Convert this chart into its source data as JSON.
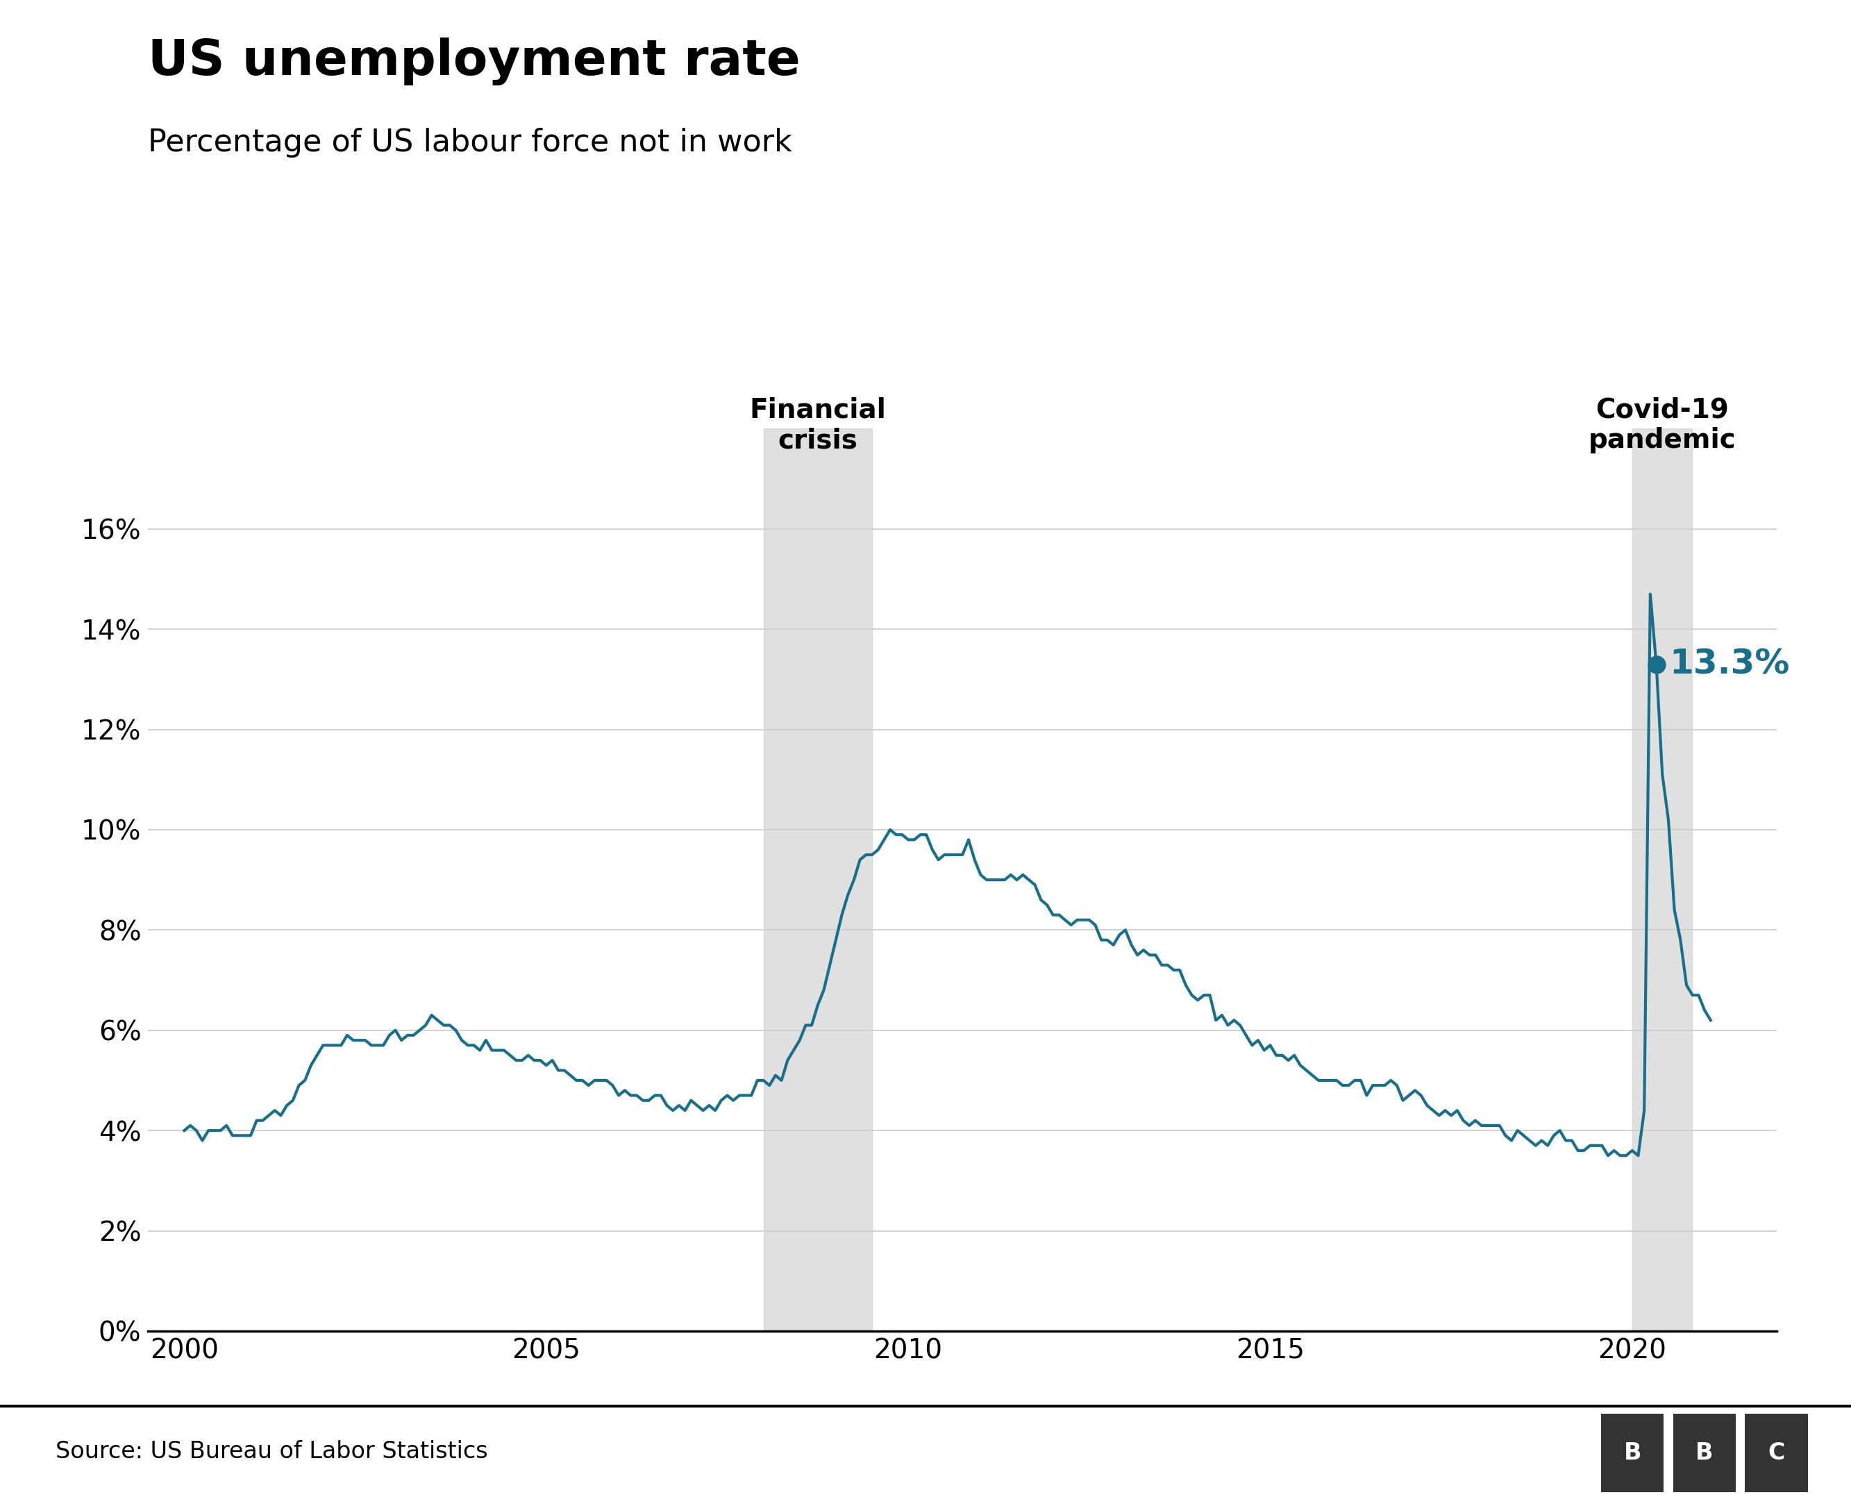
{
  "title": "US unemployment rate",
  "subtitle": "Percentage of US labour force not in work",
  "source": "Source: US Bureau of Labor Statistics",
  "line_color": "#1a6e8a",
  "background_color": "#ffffff",
  "financial_crisis_start": 2008.0,
  "financial_crisis_end": 2009.5,
  "covid_start": 2020.0,
  "covid_end": 2020.83,
  "annotation_label": "13.3%",
  "annotation_value": 13.3,
  "dot_x": 2020.333,
  "dot_y": 13.3,
  "financial_crisis_label": "Financial\ncrisis",
  "covid_label": "Covid-19\npandemic",
  "xlim": [
    1999.5,
    2022.0
  ],
  "ylim": [
    0,
    18
  ],
  "yticks": [
    0,
    2,
    4,
    6,
    8,
    10,
    12,
    14,
    16
  ],
  "ytick_labels": [
    "0%",
    "2%",
    "4%",
    "6%",
    "8%",
    "10%",
    "12%",
    "14%",
    "16%"
  ],
  "xticks": [
    2000,
    2005,
    2010,
    2015,
    2020
  ],
  "title_fontsize": 52,
  "subtitle_fontsize": 32,
  "annotation_fontsize": 36,
  "tick_fontsize": 28,
  "crisis_label_fontsize": 28,
  "source_fontsize": 24,
  "shade_color": "#cccccc",
  "shade_alpha": 0.6,
  "unemployment_data": [
    [
      2000,
      1,
      4.0
    ],
    [
      2000,
      2,
      4.1
    ],
    [
      2000,
      3,
      4.0
    ],
    [
      2000,
      4,
      3.8
    ],
    [
      2000,
      5,
      4.0
    ],
    [
      2000,
      6,
      4.0
    ],
    [
      2000,
      7,
      4.0
    ],
    [
      2000,
      8,
      4.1
    ],
    [
      2000,
      9,
      3.9
    ],
    [
      2000,
      10,
      3.9
    ],
    [
      2000,
      11,
      3.9
    ],
    [
      2000,
      12,
      3.9
    ],
    [
      2001,
      1,
      4.2
    ],
    [
      2001,
      2,
      4.2
    ],
    [
      2001,
      3,
      4.3
    ],
    [
      2001,
      4,
      4.4
    ],
    [
      2001,
      5,
      4.3
    ],
    [
      2001,
      6,
      4.5
    ],
    [
      2001,
      7,
      4.6
    ],
    [
      2001,
      8,
      4.9
    ],
    [
      2001,
      9,
      5.0
    ],
    [
      2001,
      10,
      5.3
    ],
    [
      2001,
      11,
      5.5
    ],
    [
      2001,
      12,
      5.7
    ],
    [
      2002,
      1,
      5.7
    ],
    [
      2002,
      2,
      5.7
    ],
    [
      2002,
      3,
      5.7
    ],
    [
      2002,
      4,
      5.9
    ],
    [
      2002,
      5,
      5.8
    ],
    [
      2002,
      6,
      5.8
    ],
    [
      2002,
      7,
      5.8
    ],
    [
      2002,
      8,
      5.7
    ],
    [
      2002,
      9,
      5.7
    ],
    [
      2002,
      10,
      5.7
    ],
    [
      2002,
      11,
      5.9
    ],
    [
      2002,
      12,
      6.0
    ],
    [
      2003,
      1,
      5.8
    ],
    [
      2003,
      2,
      5.9
    ],
    [
      2003,
      3,
      5.9
    ],
    [
      2003,
      4,
      6.0
    ],
    [
      2003,
      5,
      6.1
    ],
    [
      2003,
      6,
      6.3
    ],
    [
      2003,
      7,
      6.2
    ],
    [
      2003,
      8,
      6.1
    ],
    [
      2003,
      9,
      6.1
    ],
    [
      2003,
      10,
      6.0
    ],
    [
      2003,
      11,
      5.8
    ],
    [
      2003,
      12,
      5.7
    ],
    [
      2004,
      1,
      5.7
    ],
    [
      2004,
      2,
      5.6
    ],
    [
      2004,
      3,
      5.8
    ],
    [
      2004,
      4,
      5.6
    ],
    [
      2004,
      5,
      5.6
    ],
    [
      2004,
      6,
      5.6
    ],
    [
      2004,
      7,
      5.5
    ],
    [
      2004,
      8,
      5.4
    ],
    [
      2004,
      9,
      5.4
    ],
    [
      2004,
      10,
      5.5
    ],
    [
      2004,
      11,
      5.4
    ],
    [
      2004,
      12,
      5.4
    ],
    [
      2005,
      1,
      5.3
    ],
    [
      2005,
      2,
      5.4
    ],
    [
      2005,
      3,
      5.2
    ],
    [
      2005,
      4,
      5.2
    ],
    [
      2005,
      5,
      5.1
    ],
    [
      2005,
      6,
      5.0
    ],
    [
      2005,
      7,
      5.0
    ],
    [
      2005,
      8,
      4.9
    ],
    [
      2005,
      9,
      5.0
    ],
    [
      2005,
      10,
      5.0
    ],
    [
      2005,
      11,
      5.0
    ],
    [
      2005,
      12,
      4.9
    ],
    [
      2006,
      1,
      4.7
    ],
    [
      2006,
      2,
      4.8
    ],
    [
      2006,
      3,
      4.7
    ],
    [
      2006,
      4,
      4.7
    ],
    [
      2006,
      5,
      4.6
    ],
    [
      2006,
      6,
      4.6
    ],
    [
      2006,
      7,
      4.7
    ],
    [
      2006,
      8,
      4.7
    ],
    [
      2006,
      9,
      4.5
    ],
    [
      2006,
      10,
      4.4
    ],
    [
      2006,
      11,
      4.5
    ],
    [
      2006,
      12,
      4.4
    ],
    [
      2007,
      1,
      4.6
    ],
    [
      2007,
      2,
      4.5
    ],
    [
      2007,
      3,
      4.4
    ],
    [
      2007,
      4,
      4.5
    ],
    [
      2007,
      5,
      4.4
    ],
    [
      2007,
      6,
      4.6
    ],
    [
      2007,
      7,
      4.7
    ],
    [
      2007,
      8,
      4.6
    ],
    [
      2007,
      9,
      4.7
    ],
    [
      2007,
      10,
      4.7
    ],
    [
      2007,
      11,
      4.7
    ],
    [
      2007,
      12,
      5.0
    ],
    [
      2008,
      1,
      5.0
    ],
    [
      2008,
      2,
      4.9
    ],
    [
      2008,
      3,
      5.1
    ],
    [
      2008,
      4,
      5.0
    ],
    [
      2008,
      5,
      5.4
    ],
    [
      2008,
      6,
      5.6
    ],
    [
      2008,
      7,
      5.8
    ],
    [
      2008,
      8,
      6.1
    ],
    [
      2008,
      9,
      6.1
    ],
    [
      2008,
      10,
      6.5
    ],
    [
      2008,
      11,
      6.8
    ],
    [
      2008,
      12,
      7.3
    ],
    [
      2009,
      1,
      7.8
    ],
    [
      2009,
      2,
      8.3
    ],
    [
      2009,
      3,
      8.7
    ],
    [
      2009,
      4,
      9.0
    ],
    [
      2009,
      5,
      9.4
    ],
    [
      2009,
      6,
      9.5
    ],
    [
      2009,
      7,
      9.5
    ],
    [
      2009,
      8,
      9.6
    ],
    [
      2009,
      9,
      9.8
    ],
    [
      2009,
      10,
      10.0
    ],
    [
      2009,
      11,
      9.9
    ],
    [
      2009,
      12,
      9.9
    ],
    [
      2010,
      1,
      9.8
    ],
    [
      2010,
      2,
      9.8
    ],
    [
      2010,
      3,
      9.9
    ],
    [
      2010,
      4,
      9.9
    ],
    [
      2010,
      5,
      9.6
    ],
    [
      2010,
      6,
      9.4
    ],
    [
      2010,
      7,
      9.5
    ],
    [
      2010,
      8,
      9.5
    ],
    [
      2010,
      9,
      9.5
    ],
    [
      2010,
      10,
      9.5
    ],
    [
      2010,
      11,
      9.8
    ],
    [
      2010,
      12,
      9.4
    ],
    [
      2011,
      1,
      9.1
    ],
    [
      2011,
      2,
      9.0
    ],
    [
      2011,
      3,
      9.0
    ],
    [
      2011,
      4,
      9.0
    ],
    [
      2011,
      5,
      9.0
    ],
    [
      2011,
      6,
      9.1
    ],
    [
      2011,
      7,
      9.0
    ],
    [
      2011,
      8,
      9.1
    ],
    [
      2011,
      9,
      9.0
    ],
    [
      2011,
      10,
      8.9
    ],
    [
      2011,
      11,
      8.6
    ],
    [
      2011,
      12,
      8.5
    ],
    [
      2012,
      1,
      8.3
    ],
    [
      2012,
      2,
      8.3
    ],
    [
      2012,
      3,
      8.2
    ],
    [
      2012,
      4,
      8.1
    ],
    [
      2012,
      5,
      8.2
    ],
    [
      2012,
      6,
      8.2
    ],
    [
      2012,
      7,
      8.2
    ],
    [
      2012,
      8,
      8.1
    ],
    [
      2012,
      9,
      7.8
    ],
    [
      2012,
      10,
      7.8
    ],
    [
      2012,
      11,
      7.7
    ],
    [
      2012,
      12,
      7.9
    ],
    [
      2013,
      1,
      8.0
    ],
    [
      2013,
      2,
      7.7
    ],
    [
      2013,
      3,
      7.5
    ],
    [
      2013,
      4,
      7.6
    ],
    [
      2013,
      5,
      7.5
    ],
    [
      2013,
      6,
      7.5
    ],
    [
      2013,
      7,
      7.3
    ],
    [
      2013,
      8,
      7.3
    ],
    [
      2013,
      9,
      7.2
    ],
    [
      2013,
      10,
      7.2
    ],
    [
      2013,
      11,
      6.9
    ],
    [
      2013,
      12,
      6.7
    ],
    [
      2014,
      1,
      6.6
    ],
    [
      2014,
      2,
      6.7
    ],
    [
      2014,
      3,
      6.7
    ],
    [
      2014,
      4,
      6.2
    ],
    [
      2014,
      5,
      6.3
    ],
    [
      2014,
      6,
      6.1
    ],
    [
      2014,
      7,
      6.2
    ],
    [
      2014,
      8,
      6.1
    ],
    [
      2014,
      9,
      5.9
    ],
    [
      2014,
      10,
      5.7
    ],
    [
      2014,
      11,
      5.8
    ],
    [
      2014,
      12,
      5.6
    ],
    [
      2015,
      1,
      5.7
    ],
    [
      2015,
      2,
      5.5
    ],
    [
      2015,
      3,
      5.5
    ],
    [
      2015,
      4,
      5.4
    ],
    [
      2015,
      5,
      5.5
    ],
    [
      2015,
      6,
      5.3
    ],
    [
      2015,
      7,
      5.2
    ],
    [
      2015,
      8,
      5.1
    ],
    [
      2015,
      9,
      5.0
    ],
    [
      2015,
      10,
      5.0
    ],
    [
      2015,
      11,
      5.0
    ],
    [
      2015,
      12,
      5.0
    ],
    [
      2016,
      1,
      4.9
    ],
    [
      2016,
      2,
      4.9
    ],
    [
      2016,
      3,
      5.0
    ],
    [
      2016,
      4,
      5.0
    ],
    [
      2016,
      5,
      4.7
    ],
    [
      2016,
      6,
      4.9
    ],
    [
      2016,
      7,
      4.9
    ],
    [
      2016,
      8,
      4.9
    ],
    [
      2016,
      9,
      5.0
    ],
    [
      2016,
      10,
      4.9
    ],
    [
      2016,
      11,
      4.6
    ],
    [
      2016,
      12,
      4.7
    ],
    [
      2017,
      1,
      4.8
    ],
    [
      2017,
      2,
      4.7
    ],
    [
      2017,
      3,
      4.5
    ],
    [
      2017,
      4,
      4.4
    ],
    [
      2017,
      5,
      4.3
    ],
    [
      2017,
      6,
      4.4
    ],
    [
      2017,
      7,
      4.3
    ],
    [
      2017,
      8,
      4.4
    ],
    [
      2017,
      9,
      4.2
    ],
    [
      2017,
      10,
      4.1
    ],
    [
      2017,
      11,
      4.2
    ],
    [
      2017,
      12,
      4.1
    ],
    [
      2018,
      1,
      4.1
    ],
    [
      2018,
      2,
      4.1
    ],
    [
      2018,
      3,
      4.1
    ],
    [
      2018,
      4,
      3.9
    ],
    [
      2018,
      5,
      3.8
    ],
    [
      2018,
      6,
      4.0
    ],
    [
      2018,
      7,
      3.9
    ],
    [
      2018,
      8,
      3.8
    ],
    [
      2018,
      9,
      3.7
    ],
    [
      2018,
      10,
      3.8
    ],
    [
      2018,
      11,
      3.7
    ],
    [
      2018,
      12,
      3.9
    ],
    [
      2019,
      1,
      4.0
    ],
    [
      2019,
      2,
      3.8
    ],
    [
      2019,
      3,
      3.8
    ],
    [
      2019,
      4,
      3.6
    ],
    [
      2019,
      5,
      3.6
    ],
    [
      2019,
      6,
      3.7
    ],
    [
      2019,
      7,
      3.7
    ],
    [
      2019,
      8,
      3.7
    ],
    [
      2019,
      9,
      3.5
    ],
    [
      2019,
      10,
      3.6
    ],
    [
      2019,
      11,
      3.5
    ],
    [
      2019,
      12,
      3.5
    ],
    [
      2020,
      1,
      3.6
    ],
    [
      2020,
      2,
      3.5
    ],
    [
      2020,
      3,
      4.4
    ],
    [
      2020,
      4,
      14.7
    ],
    [
      2020,
      5,
      13.3
    ],
    [
      2020,
      6,
      11.1
    ],
    [
      2020,
      7,
      10.2
    ],
    [
      2020,
      8,
      8.4
    ],
    [
      2020,
      9,
      7.8
    ],
    [
      2020,
      10,
      6.9
    ],
    [
      2020,
      11,
      6.7
    ],
    [
      2020,
      12,
      6.7
    ],
    [
      2021,
      1,
      6.4
    ],
    [
      2021,
      2,
      6.2
    ]
  ]
}
